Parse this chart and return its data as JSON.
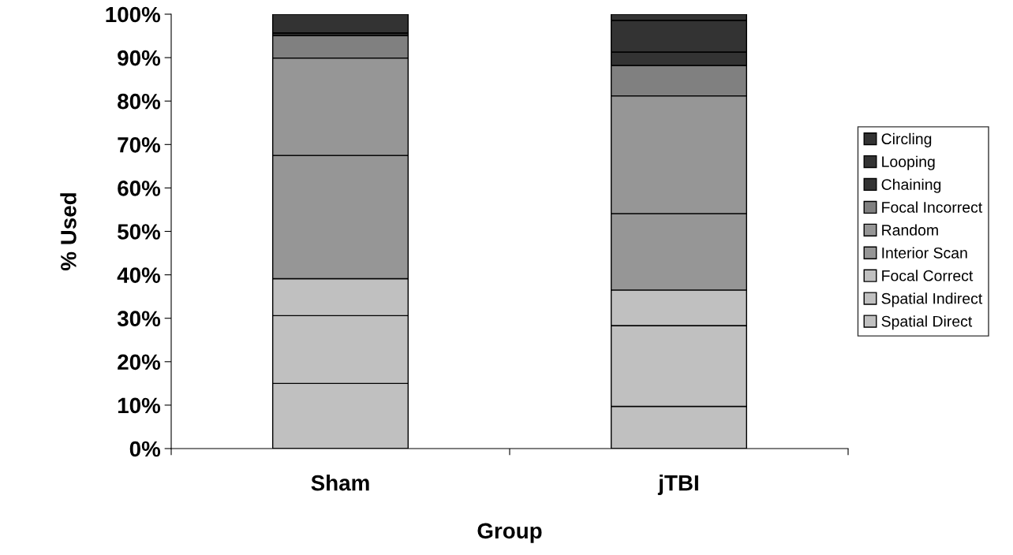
{
  "chart_data": {
    "type": "bar",
    "stacked": true,
    "xlabel": "Group",
    "ylabel": "% Used",
    "categories": [
      "Sham",
      "jTBI"
    ],
    "series": [
      {
        "name": "Spatial Direct",
        "color": "#c0c0c0",
        "values": [
          15.0,
          9.7
        ]
      },
      {
        "name": "Spatial Indirect",
        "color": "#c0c0c0",
        "values": [
          15.6,
          18.6
        ]
      },
      {
        "name": "Focal Correct",
        "color": "#c0c0c0",
        "values": [
          8.5,
          8.2
        ]
      },
      {
        "name": "Interior Scan",
        "color": "#969696",
        "values": [
          28.4,
          17.6
        ]
      },
      {
        "name": "Random",
        "color": "#969696",
        "values": [
          22.4,
          27.1
        ]
      },
      {
        "name": "Focal Incorrect",
        "color": "#808080",
        "values": [
          5.2,
          7.0
        ]
      },
      {
        "name": "Chaining",
        "color": "#333333",
        "values": [
          0.6,
          3.1
        ]
      },
      {
        "name": "Looping",
        "color": "#333333",
        "values": [
          0,
          7.3
        ]
      },
      {
        "name": "Circling",
        "color": "#333333",
        "values": [
          4.3,
          1.4
        ]
      }
    ],
    "ylim": [
      0,
      100
    ],
    "yticks": [
      {
        "value": 0,
        "label": "0%"
      },
      {
        "value": 10,
        "label": "10%"
      },
      {
        "value": 20,
        "label": "20%"
      },
      {
        "value": 30,
        "label": "30%"
      },
      {
        "value": 40,
        "label": "40%"
      },
      {
        "value": 50,
        "label": "50%"
      },
      {
        "value": 60,
        "label": "60%"
      },
      {
        "value": 70,
        "label": "70%"
      },
      {
        "value": 80,
        "label": "80%"
      },
      {
        "value": 90,
        "label": "90%"
      },
      {
        "value": 100,
        "label": "100%"
      }
    ],
    "grid": false,
    "legend": "right"
  }
}
